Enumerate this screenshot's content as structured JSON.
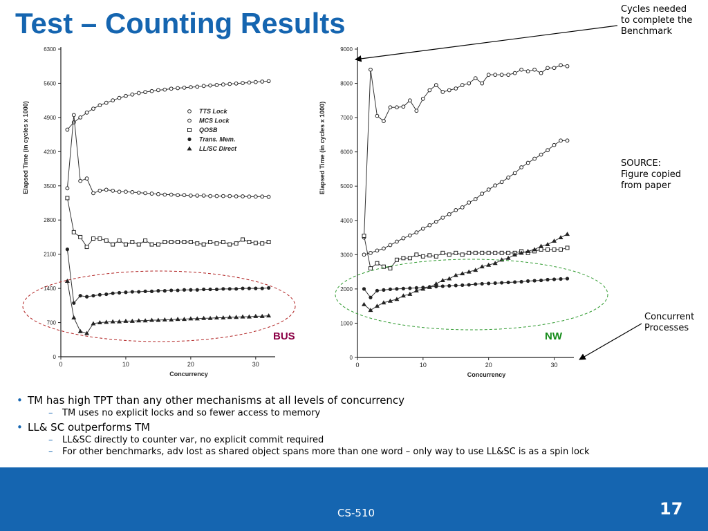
{
  "slide": {
    "title": "Test – Counting Results",
    "annotations": {
      "cycles": [
        "Cycles needed",
        "to complete the",
        "Benchmark"
      ],
      "source": [
        "SOURCE:",
        "Figure copied",
        "from paper"
      ],
      "concurrent": [
        "Concurrent",
        "Processes"
      ]
    },
    "bullets": [
      {
        "text": "TM has high TPT than any other mechanisms at all levels of concurrency",
        "sub": [
          "TM uses no explicit locks and so fewer access to memory"
        ]
      },
      {
        "text": "LL& SC outperforms TM",
        "sub": [
          "LL&SC directly to counter var, no explicit commit required",
          "For other benchmarks, adv lost as shared object spans more than one word – only way to use LL&SC is as a spin lock"
        ]
      }
    ],
    "bullet_marker": "•",
    "dash_marker": "–",
    "footer": {
      "course": "CS-510",
      "page": "17"
    }
  },
  "colors": {
    "title": "#1565b0",
    "footer": "#1565b0",
    "bus_label": "#8b0045",
    "nw_label": "#138a18",
    "bus_ellipse": "#b02020",
    "nw_ellipse": "#2f9a2f"
  },
  "chart_data": [
    {
      "type": "line",
      "panel": "BUS",
      "label": "BUS",
      "xlabel": "Concurrency",
      "ylabel": "Elapsed Time (in cycles x 1000)",
      "xlim": [
        0,
        33
      ],
      "ylim": [
        0,
        6300
      ],
      "xticks": [
        0,
        10,
        20,
        30
      ],
      "yticks": [
        0,
        700,
        1400,
        2100,
        2800,
        3500,
        4200,
        4900,
        5600,
        6300
      ],
      "legend": [
        "TTS Lock",
        "MCS Lock",
        "QOSB",
        "Trans. Mem.",
        "LL/SC Direct"
      ],
      "legend_markers": [
        "o",
        "o",
        "s",
        "*",
        "^"
      ],
      "series": [
        {
          "name": "TTS Lock",
          "marker": "o",
          "x": [
            1,
            2,
            3,
            4,
            5,
            6,
            7,
            8,
            9,
            10,
            11,
            12,
            13,
            14,
            15,
            16,
            17,
            18,
            19,
            20,
            21,
            22,
            23,
            24,
            25,
            26,
            27,
            28,
            29,
            30,
            31,
            32
          ],
          "values": [
            4650,
            4800,
            4900,
            5000,
            5080,
            5150,
            5200,
            5250,
            5300,
            5340,
            5370,
            5400,
            5420,
            5440,
            5460,
            5470,
            5490,
            5500,
            5510,
            5520,
            5530,
            5545,
            5555,
            5565,
            5575,
            5585,
            5595,
            5605,
            5615,
            5625,
            5635,
            5645
          ]
        },
        {
          "name": "MCS Lock",
          "marker": "o",
          "x": [
            1,
            2,
            3,
            4,
            5,
            6,
            7,
            8,
            9,
            10,
            11,
            12,
            13,
            14,
            15,
            16,
            17,
            18,
            19,
            20,
            21,
            22,
            23,
            24,
            25,
            26,
            27,
            28,
            29,
            30,
            31,
            32
          ],
          "values": [
            3450,
            4950,
            3600,
            3650,
            3350,
            3400,
            3420,
            3400,
            3380,
            3380,
            3370,
            3360,
            3350,
            3340,
            3330,
            3320,
            3320,
            3310,
            3310,
            3300,
            3300,
            3300,
            3290,
            3290,
            3290,
            3290,
            3285,
            3285,
            3280,
            3280,
            3280,
            3275
          ]
        },
        {
          "name": "QOSB",
          "marker": "s",
          "x": [
            1,
            2,
            3,
            4,
            5,
            6,
            7,
            8,
            9,
            10,
            11,
            12,
            13,
            14,
            15,
            16,
            17,
            18,
            19,
            20,
            21,
            22,
            23,
            24,
            25,
            26,
            27,
            28,
            29,
            30,
            31,
            32
          ],
          "values": [
            3250,
            2550,
            2450,
            2250,
            2420,
            2420,
            2380,
            2300,
            2380,
            2300,
            2350,
            2300,
            2380,
            2300,
            2300,
            2350,
            2350,
            2350,
            2350,
            2350,
            2320,
            2300,
            2350,
            2320,
            2350,
            2300,
            2320,
            2400,
            2350,
            2330,
            2320,
            2350
          ]
        },
        {
          "name": "Trans. Mem.",
          "marker": "*",
          "x": [
            1,
            2,
            3,
            4,
            5,
            6,
            7,
            8,
            9,
            10,
            11,
            12,
            13,
            14,
            15,
            16,
            17,
            18,
            19,
            20,
            21,
            22,
            23,
            24,
            25,
            26,
            27,
            28,
            29,
            30,
            31,
            32
          ],
          "values": [
            2200,
            1100,
            1250,
            1230,
            1250,
            1270,
            1280,
            1300,
            1310,
            1320,
            1330,
            1330,
            1340,
            1340,
            1350,
            1350,
            1360,
            1360,
            1370,
            1370,
            1370,
            1380,
            1380,
            1380,
            1390,
            1390,
            1390,
            1400,
            1400,
            1400,
            1400,
            1410
          ]
        },
        {
          "name": "LL/SC Direct",
          "marker": "^",
          "x": [
            1,
            2,
            3,
            4,
            5,
            6,
            7,
            8,
            9,
            10,
            11,
            12,
            13,
            14,
            15,
            16,
            17,
            18,
            19,
            20,
            21,
            22,
            23,
            24,
            25,
            26,
            27,
            28,
            29,
            30,
            31,
            32
          ],
          "values": [
            1550,
            800,
            520,
            480,
            680,
            700,
            710,
            720,
            720,
            730,
            730,
            740,
            740,
            750,
            750,
            760,
            760,
            770,
            770,
            780,
            780,
            790,
            790,
            800,
            800,
            810,
            810,
            820,
            820,
            830,
            830,
            840
          ]
        }
      ]
    },
    {
      "type": "line",
      "panel": "NW",
      "label": "NW",
      "xlabel": "Concurrency",
      "ylabel": "Elapsed Time (in cycles x 1000)",
      "xlim": [
        0,
        33
      ],
      "ylim": [
        0,
        9000
      ],
      "xticks": [
        0,
        10,
        20,
        30
      ],
      "yticks": [
        0,
        1000,
        2000,
        3000,
        4000,
        5000,
        6000,
        7000,
        8000,
        9000
      ],
      "series": [
        {
          "name": "TTS Lock",
          "marker": "o",
          "x": [
            1,
            2,
            3,
            4,
            5,
            6,
            7,
            8,
            9,
            10,
            11,
            12,
            13,
            14,
            15,
            16,
            17,
            18,
            19,
            20,
            21,
            22,
            23,
            24,
            25,
            26,
            27,
            28,
            29,
            30,
            31,
            32
          ],
          "values": [
            3000,
            3050,
            3120,
            3180,
            3280,
            3380,
            3480,
            3560,
            3650,
            3760,
            3860,
            3960,
            4080,
            4180,
            4300,
            4380,
            4520,
            4620,
            4780,
            4900,
            5020,
            5120,
            5250,
            5380,
            5550,
            5680,
            5800,
            5920,
            6050,
            6200,
            6330,
            6330
          ]
        },
        {
          "name": "MCS Lock",
          "marker": "o",
          "x": [
            1,
            2,
            3,
            4,
            5,
            6,
            7,
            8,
            9,
            10,
            11,
            12,
            13,
            14,
            15,
            16,
            17,
            18,
            19,
            20,
            21,
            22,
            23,
            24,
            25,
            26,
            27,
            28,
            29,
            30,
            31,
            32
          ],
          "values": [
            3500,
            8400,
            7050,
            6900,
            7300,
            7300,
            7320,
            7500,
            7200,
            7550,
            7800,
            7950,
            7750,
            7800,
            7850,
            7950,
            8000,
            8150,
            8000,
            8250,
            8250,
            8250,
            8250,
            8300,
            8400,
            8350,
            8400,
            8300,
            8450,
            8450,
            8530,
            8500
          ]
        },
        {
          "name": "QOSB",
          "marker": "s",
          "x": [
            1,
            2,
            3,
            4,
            5,
            6,
            7,
            8,
            9,
            10,
            11,
            12,
            13,
            14,
            15,
            16,
            17,
            18,
            19,
            20,
            21,
            22,
            23,
            24,
            25,
            26,
            27,
            28,
            29,
            30,
            31,
            32
          ],
          "values": [
            3550,
            2600,
            2750,
            2650,
            2600,
            2850,
            2900,
            2900,
            3000,
            2950,
            2980,
            2950,
            3050,
            3000,
            3050,
            3000,
            3050,
            3050,
            3050,
            3050,
            3050,
            3050,
            3050,
            3050,
            3100,
            3050,
            3100,
            3150,
            3150,
            3150,
            3150,
            3200
          ]
        },
        {
          "name": "Trans. Mem.",
          "marker": "*",
          "x": [
            1,
            2,
            3,
            4,
            5,
            6,
            7,
            8,
            9,
            10,
            11,
            12,
            13,
            14,
            15,
            16,
            17,
            18,
            19,
            20,
            21,
            22,
            23,
            24,
            25,
            26,
            27,
            28,
            29,
            30,
            31,
            32
          ],
          "values": [
            2000,
            1750,
            1950,
            1970,
            1990,
            2000,
            2010,
            2020,
            2030,
            2040,
            2060,
            2070,
            2080,
            2090,
            2100,
            2110,
            2120,
            2140,
            2150,
            2160,
            2170,
            2180,
            2190,
            2200,
            2210,
            2230,
            2240,
            2250,
            2270,
            2280,
            2290,
            2300
          ]
        },
        {
          "name": "LL/SC Direct",
          "marker": "^",
          "x": [
            1,
            2,
            3,
            4,
            5,
            6,
            7,
            8,
            9,
            10,
            11,
            12,
            13,
            14,
            15,
            16,
            17,
            18,
            19,
            20,
            21,
            22,
            23,
            24,
            25,
            26,
            27,
            28,
            29,
            30,
            31,
            32
          ],
          "values": [
            1550,
            1380,
            1500,
            1600,
            1650,
            1700,
            1800,
            1850,
            1950,
            2000,
            2050,
            2150,
            2250,
            2300,
            2400,
            2450,
            2500,
            2550,
            2650,
            2700,
            2750,
            2850,
            2900,
            3000,
            3050,
            3100,
            3150,
            3250,
            3300,
            3400,
            3500,
            3600
          ]
        }
      ]
    }
  ]
}
